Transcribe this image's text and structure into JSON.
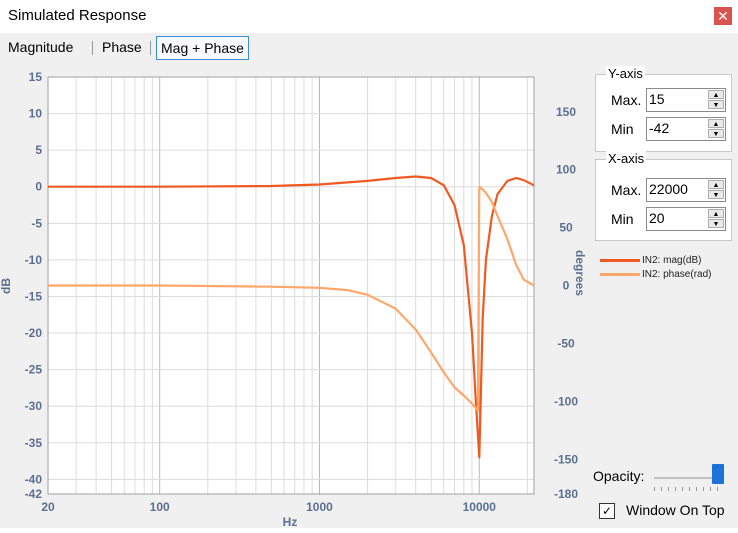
{
  "window": {
    "title": "Simulated Response",
    "close_glyph": "✕"
  },
  "tabs": [
    {
      "label": "Magnitude",
      "active": false
    },
    {
      "label": "Phase",
      "active": false
    },
    {
      "label": "Mag + Phase",
      "active": true
    }
  ],
  "yaxis_panel": {
    "title": "Y-axis",
    "max_label": "Max.",
    "max_value": "15",
    "min_label": "Min",
    "min_value": "-42"
  },
  "xaxis_panel": {
    "title": "X-axis",
    "max_label": "Max.",
    "max_value": "22000",
    "min_label": "Min",
    "min_value": "20"
  },
  "legend": [
    {
      "label": "IN2: mag(dB)",
      "color": "#f05a22"
    },
    {
      "label": "IN2: phase(rad)",
      "color": "#ffa76b"
    }
  ],
  "opacity": {
    "label": "Opacity:",
    "value": 1.0
  },
  "window_on_top": {
    "label": "Window On Top",
    "checked": true,
    "check_glyph": "✓"
  },
  "chart_data": {
    "type": "line",
    "xlabel": "Hz",
    "ylabel": "dB",
    "y2label": "degrees",
    "xscale": "log",
    "xlim": [
      20,
      22000
    ],
    "ylim": [
      -42,
      15
    ],
    "y2lim": [
      -180,
      180
    ],
    "xticks": [
      "20",
      "100",
      "1000",
      "10000"
    ],
    "yticks": [
      "15",
      "10",
      "5",
      "0",
      "-5",
      "-10",
      "-15",
      "-20",
      "-25",
      "-30",
      "-35",
      "-40",
      "-42"
    ],
    "y2ticks": [
      "150",
      "100",
      "50",
      "0",
      "-50",
      "-100",
      "-150",
      "-180"
    ],
    "grid": true,
    "series": [
      {
        "name": "IN2: mag(dB)",
        "axis": "left",
        "color": "#f05a22",
        "x": [
          20,
          100,
          500,
          1000,
          2000,
          3000,
          4000,
          5000,
          6000,
          7000,
          8000,
          9000,
          9500,
          10000,
          10500,
          11000,
          12000,
          13000,
          15000,
          17000,
          19000,
          22000
        ],
        "y": [
          0,
          0,
          0.1,
          0.3,
          0.8,
          1.2,
          1.4,
          1.2,
          0.2,
          -2.5,
          -8,
          -20,
          -29,
          -37,
          -18,
          -10,
          -4,
          -1,
          0.8,
          1.2,
          0.9,
          0.2
        ]
      },
      {
        "name": "IN2: phase(rad)",
        "axis": "right",
        "color": "#ffa76b",
        "x": [
          20,
          100,
          500,
          1000,
          1500,
          2000,
          3000,
          4000,
          5000,
          6000,
          7000,
          8000,
          9000,
          9800,
          10000,
          10500,
          11000,
          12000,
          13000,
          15000,
          17000,
          19000,
          22000
        ],
        "y": [
          0,
          0,
          -1,
          -2,
          -4,
          -8,
          -20,
          -38,
          -58,
          -75,
          -88,
          -95,
          -102,
          -108,
          85,
          83,
          80,
          72,
          60,
          40,
          18,
          5,
          0
        ]
      }
    ]
  }
}
